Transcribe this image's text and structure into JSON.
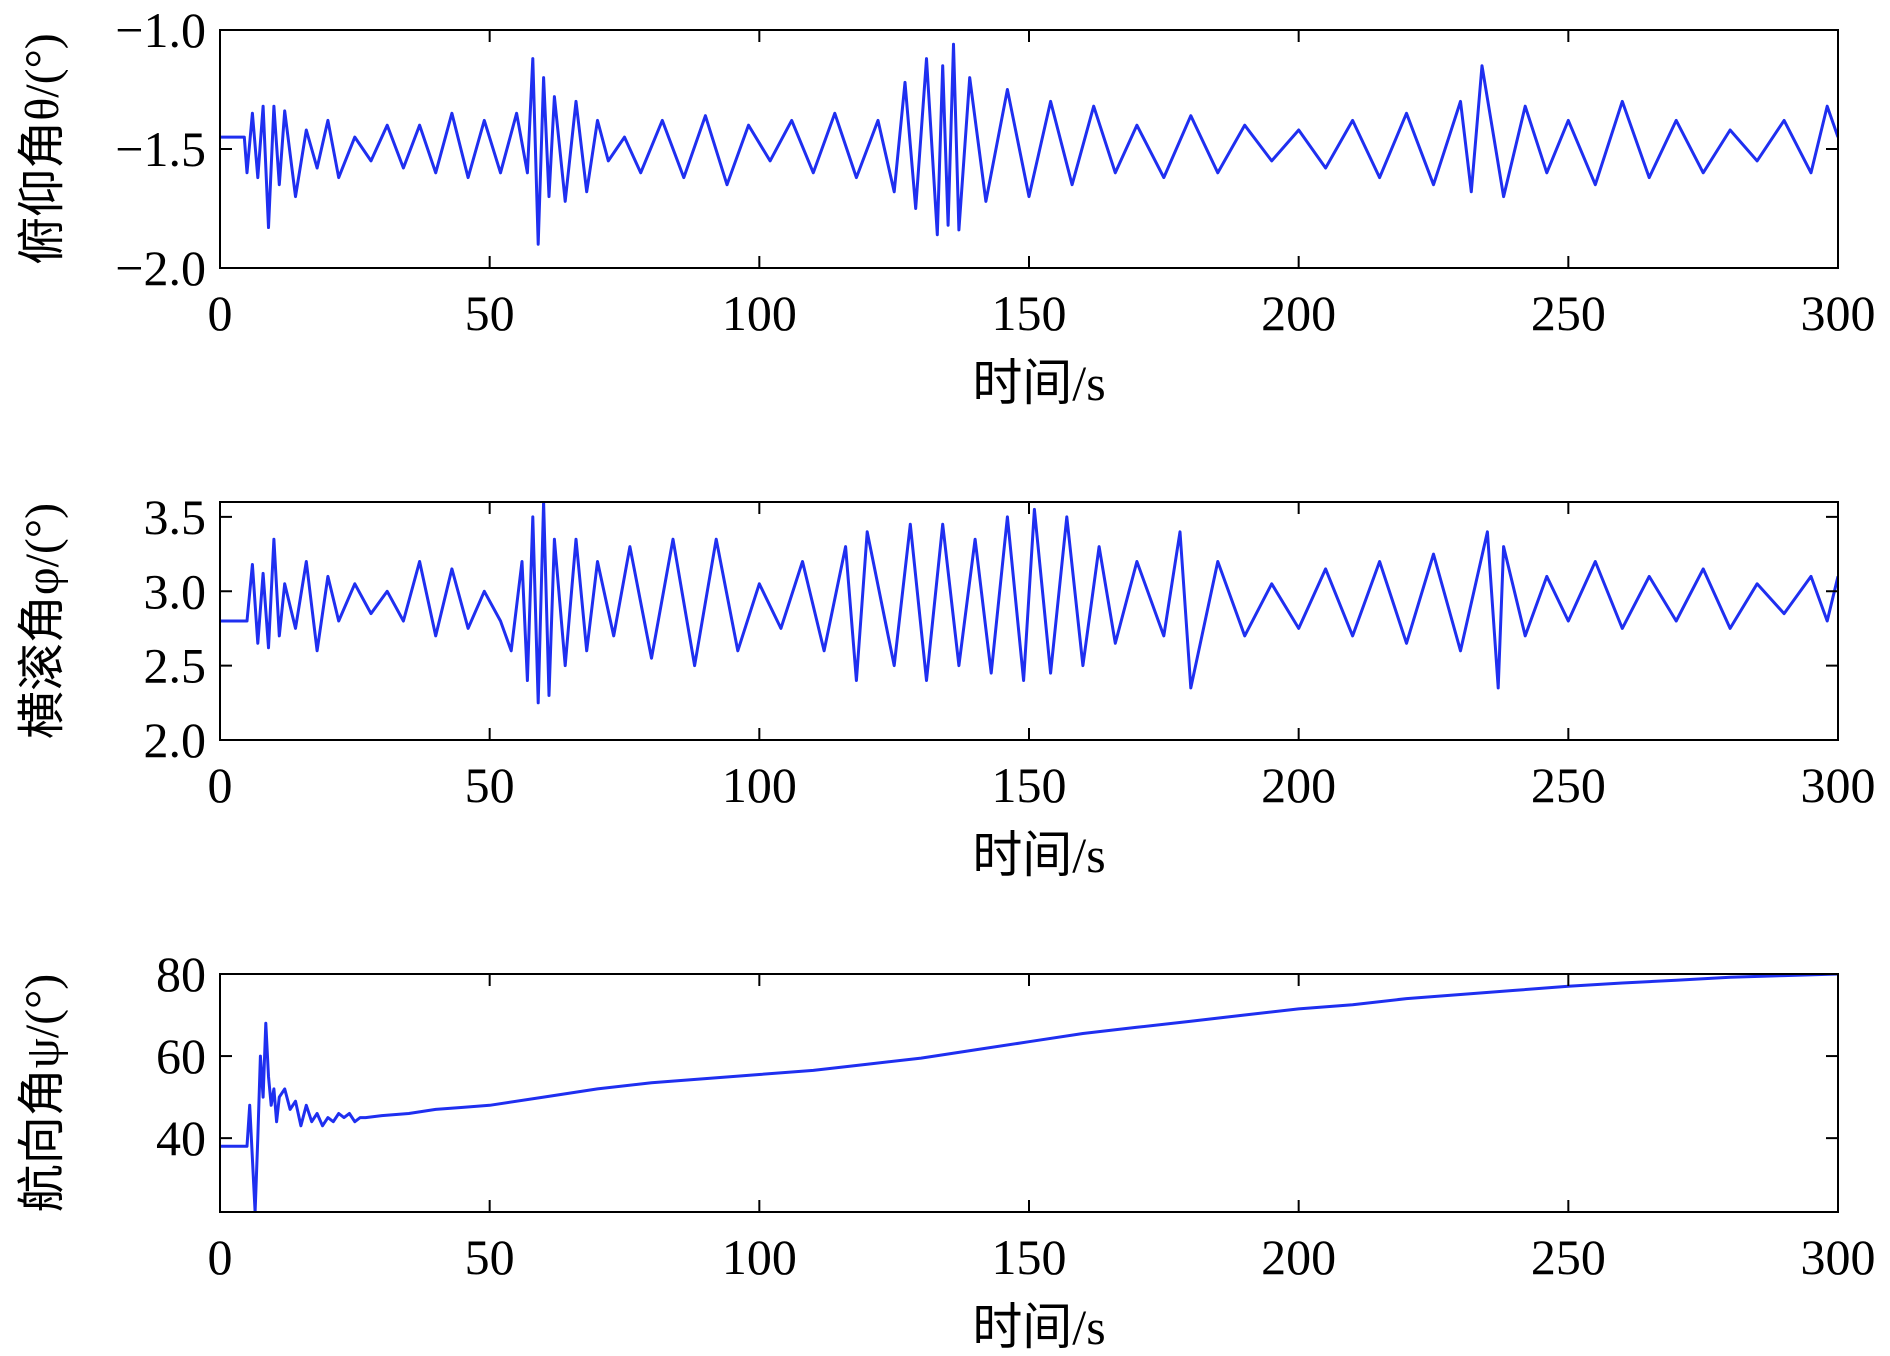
{
  "chart_data": [
    {
      "type": "line",
      "title": "",
      "xlabel": "时间/s",
      "ylabel": "俯仰角θ/(°)",
      "xlim": [
        0,
        300
      ],
      "ylim": [
        -2.0,
        -1.0
      ],
      "xticks": [
        0,
        50,
        100,
        150,
        200,
        250,
        300
      ],
      "xtick_labels": [
        "0",
        "50",
        "100",
        "150",
        "200",
        "250",
        "300"
      ],
      "yticks": [
        -1.0,
        -1.5,
        -2.0
      ],
      "ytick_labels": [
        "−1.0",
        "−1.5",
        "−2.0"
      ],
      "grid": false,
      "color": "#1f2ff0",
      "x": [
        0,
        4.5,
        5,
        6,
        7,
        8,
        9,
        10,
        11,
        12,
        14,
        16,
        18,
        20,
        22,
        25,
        28,
        31,
        34,
        37,
        40,
        43,
        46,
        49,
        52,
        55,
        57,
        58,
        59,
        60,
        61,
        62,
        64,
        66,
        68,
        70,
        72,
        75,
        78,
        82,
        86,
        90,
        94,
        98,
        102,
        106,
        110,
        114,
        118,
        122,
        125,
        127,
        129,
        131,
        133,
        134,
        135,
        136,
        137,
        139,
        142,
        146,
        150,
        154,
        158,
        162,
        166,
        170,
        175,
        180,
        185,
        190,
        195,
        200,
        205,
        210,
        215,
        220,
        225,
        230,
        232,
        234,
        238,
        242,
        246,
        250,
        255,
        260,
        265,
        270,
        275,
        280,
        285,
        290,
        295,
        298,
        300
      ],
      "y": [
        -1.45,
        -1.45,
        -1.6,
        -1.35,
        -1.62,
        -1.32,
        -1.83,
        -1.32,
        -1.65,
        -1.34,
        -1.7,
        -1.42,
        -1.58,
        -1.38,
        -1.62,
        -1.45,
        -1.55,
        -1.4,
        -1.58,
        -1.4,
        -1.6,
        -1.35,
        -1.62,
        -1.38,
        -1.6,
        -1.35,
        -1.6,
        -1.12,
        -1.9,
        -1.2,
        -1.7,
        -1.28,
        -1.72,
        -1.3,
        -1.68,
        -1.38,
        -1.55,
        -1.45,
        -1.6,
        -1.38,
        -1.62,
        -1.36,
        -1.65,
        -1.4,
        -1.55,
        -1.38,
        -1.6,
        -1.35,
        -1.62,
        -1.38,
        -1.68,
        -1.22,
        -1.75,
        -1.12,
        -1.86,
        -1.15,
        -1.82,
        -1.06,
        -1.84,
        -1.2,
        -1.72,
        -1.25,
        -1.7,
        -1.3,
        -1.65,
        -1.32,
        -1.6,
        -1.4,
        -1.62,
        -1.36,
        -1.6,
        -1.4,
        -1.55,
        -1.42,
        -1.58,
        -1.38,
        -1.62,
        -1.35,
        -1.65,
        -1.3,
        -1.68,
        -1.15,
        -1.7,
        -1.32,
        -1.6,
        -1.38,
        -1.65,
        -1.3,
        -1.62,
        -1.38,
        -1.6,
        -1.42,
        -1.55,
        -1.38,
        -1.6,
        -1.32,
        -1.45
      ]
    },
    {
      "type": "line",
      "title": "",
      "xlabel": "时间/s",
      "ylabel": "横滚角φ/(°)",
      "xlim": [
        0,
        300
      ],
      "ylim": [
        2.0,
        3.6
      ],
      "xticks": [
        0,
        50,
        100,
        150,
        200,
        250,
        300
      ],
      "xtick_labels": [
        "0",
        "50",
        "100",
        "150",
        "200",
        "250",
        "300"
      ],
      "yticks": [
        2.0,
        2.5,
        3.0,
        3.5
      ],
      "ytick_labels": [
        "2.0",
        "2.5",
        "3.0",
        "3.5"
      ],
      "grid": false,
      "color": "#1f2ff0",
      "x": [
        0,
        4.5,
        5,
        6,
        7,
        8,
        9,
        10,
        11,
        12,
        14,
        16,
        18,
        20,
        22,
        25,
        28,
        31,
        34,
        37,
        40,
        43,
        46,
        49,
        52,
        54,
        56,
        57,
        58,
        59,
        60,
        61,
        62,
        64,
        66,
        68,
        70,
        73,
        76,
        80,
        84,
        88,
        92,
        96,
        100,
        104,
        108,
        112,
        116,
        118,
        120,
        125,
        128,
        131,
        134,
        137,
        140,
        143,
        146,
        149,
        151,
        154,
        157,
        160,
        163,
        166,
        170,
        175,
        178,
        180,
        185,
        190,
        195,
        200,
        205,
        210,
        215,
        220,
        225,
        230,
        235,
        237,
        238,
        242,
        246,
        250,
        255,
        260,
        265,
        270,
        275,
        280,
        285,
        290,
        295,
        298,
        300
      ],
      "y": [
        2.8,
        2.8,
        2.8,
        3.18,
        2.65,
        3.12,
        2.62,
        3.35,
        2.7,
        3.05,
        2.75,
        3.2,
        2.6,
        3.1,
        2.8,
        3.05,
        2.85,
        3.0,
        2.8,
        3.2,
        2.7,
        3.15,
        2.75,
        3.0,
        2.8,
        2.6,
        3.2,
        2.4,
        3.5,
        2.25,
        3.6,
        2.3,
        3.35,
        2.5,
        3.35,
        2.6,
        3.2,
        2.7,
        3.3,
        2.55,
        3.35,
        2.5,
        3.35,
        2.6,
        3.05,
        2.75,
        3.2,
        2.6,
        3.3,
        2.4,
        3.4,
        2.5,
        3.45,
        2.4,
        3.45,
        2.5,
        3.35,
        2.45,
        3.5,
        2.4,
        3.55,
        2.45,
        3.5,
        2.5,
        3.3,
        2.65,
        3.2,
        2.7,
        3.4,
        2.35,
        3.2,
        2.7,
        3.05,
        2.75,
        3.15,
        2.7,
        3.2,
        2.65,
        3.25,
        2.6,
        3.4,
        2.35,
        3.3,
        2.7,
        3.1,
        2.8,
        3.2,
        2.75,
        3.1,
        2.8,
        3.15,
        2.75,
        3.05,
        2.85,
        3.1,
        2.8,
        3.1
      ]
    },
    {
      "type": "line",
      "title": "",
      "xlabel": "时间/s",
      "ylabel": "航向角ψ/(°)",
      "xlim": [
        0,
        300
      ],
      "ylim": [
        22,
        80
      ],
      "xticks": [
        0,
        50,
        100,
        150,
        200,
        250,
        300
      ],
      "xtick_labels": [
        "0",
        "50",
        "100",
        "150",
        "200",
        "250",
        "300"
      ],
      "yticks": [
        40,
        60,
        80
      ],
      "ytick_labels": [
        "40",
        "60",
        "80"
      ],
      "grid": false,
      "color": "#1f2ff0",
      "x": [
        0,
        5,
        5.5,
        6,
        6.5,
        7,
        7.5,
        8,
        8.5,
        9,
        9.5,
        10,
        10.5,
        11,
        12,
        13,
        14,
        15,
        16,
        17,
        18,
        19,
        20,
        21,
        22,
        23,
        24,
        25,
        26,
        27,
        30,
        35,
        40,
        45,
        50,
        60,
        70,
        80,
        90,
        100,
        110,
        120,
        130,
        140,
        150,
        160,
        170,
        180,
        190,
        200,
        210,
        220,
        230,
        240,
        250,
        260,
        270,
        280,
        290,
        300
      ],
      "y": [
        38,
        38,
        48,
        35,
        22,
        40,
        60,
        50,
        68,
        55,
        48,
        52,
        44,
        50,
        52,
        47,
        49,
        43,
        48,
        44,
        46,
        43,
        45,
        44,
        46,
        45,
        46,
        44,
        45,
        45,
        45.5,
        46,
        47,
        47.5,
        48,
        50,
        52,
        53.5,
        54.5,
        55.5,
        56.5,
        58,
        59.5,
        61.5,
        63.5,
        65.5,
        67,
        68.5,
        70,
        71.5,
        72.5,
        74,
        75,
        76,
        77,
        77.8,
        78.5,
        79.2,
        79.6,
        80
      ]
    }
  ]
}
